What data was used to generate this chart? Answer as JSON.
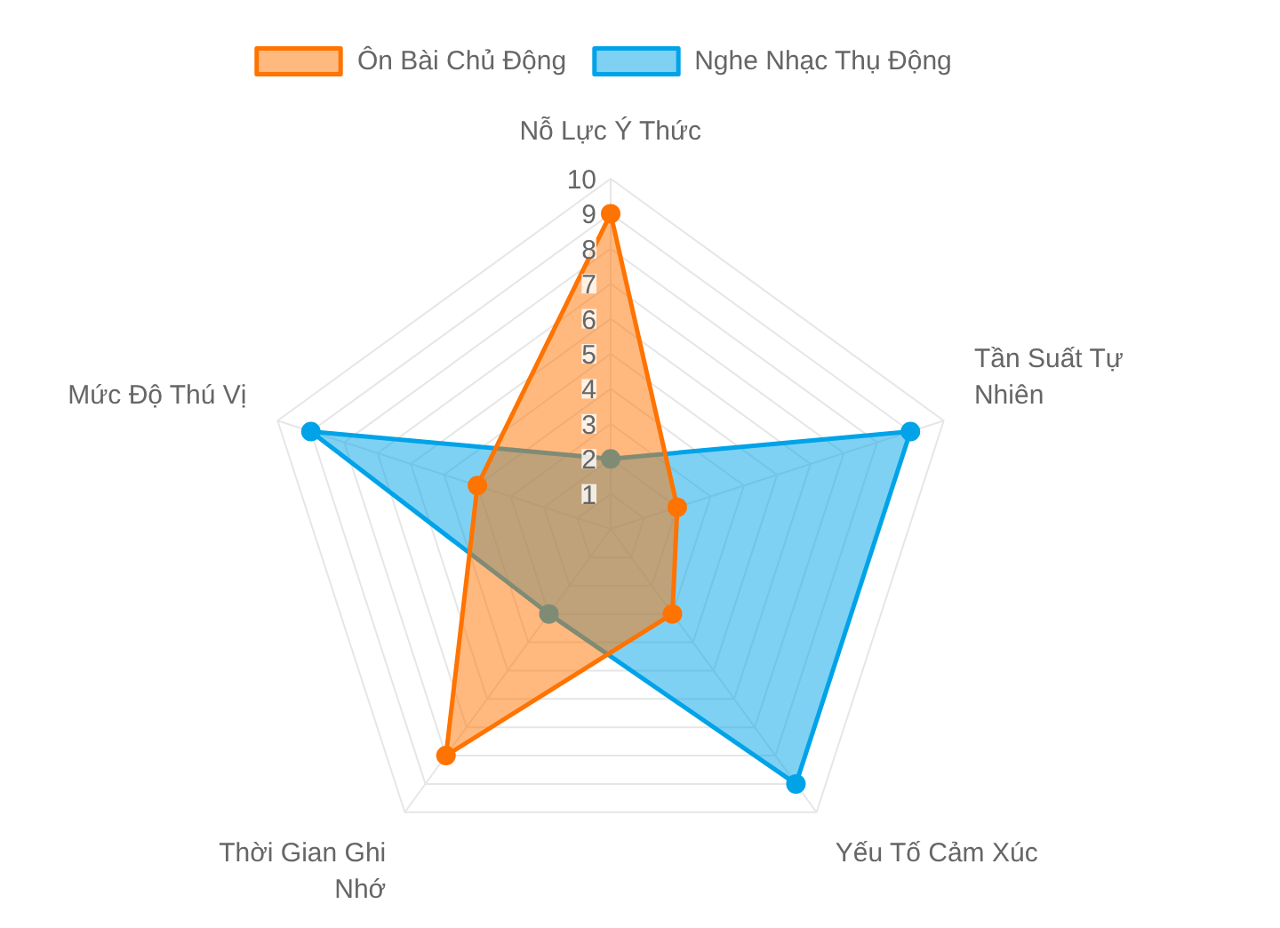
{
  "chart_data": {
    "type": "radar",
    "categories": [
      "Nỗ Lực Ý Thức",
      "Tần Suất Tự Nhiên",
      "Yếu Tố Cảm Xúc",
      "Thời Gian Ghi Nhớ",
      "Mức Độ Thú Vị"
    ],
    "series": [
      {
        "name": "Ôn Bài Chủ Động",
        "color": "#ff7300",
        "values": [
          9,
          2,
          3,
          8,
          4
        ]
      },
      {
        "name": "Nghe Nhạc Thụ Động",
        "color": "#00a3e8",
        "values": [
          2,
          9,
          9,
          3,
          9
        ]
      }
    ],
    "ylim": [
      0,
      10
    ],
    "yticks": [
      1,
      2,
      3,
      4,
      5,
      6,
      7,
      8,
      9,
      10
    ],
    "grid": true,
    "legend": "top",
    "marker": "circle"
  }
}
